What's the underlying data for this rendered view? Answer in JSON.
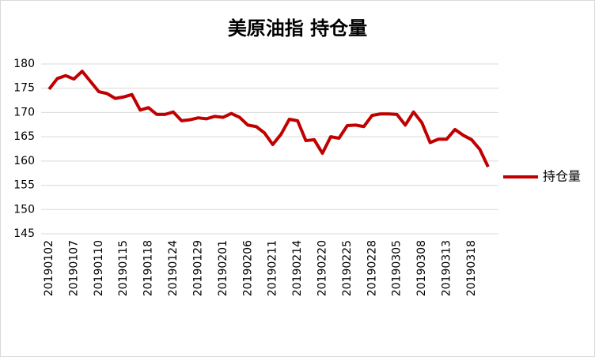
{
  "chart_data": {
    "type": "line",
    "title": "美原油指 持仓量",
    "categories": [
      "20190102",
      null,
      null,
      "20190107",
      null,
      null,
      "20190110",
      null,
      null,
      "20190115",
      null,
      null,
      "20190118",
      null,
      null,
      "20190124",
      null,
      null,
      "20190129",
      null,
      null,
      "20190201",
      null,
      null,
      "20190206",
      null,
      null,
      "20190211",
      null,
      null,
      "20190214",
      null,
      null,
      "20190220",
      null,
      null,
      "20190225",
      null,
      null,
      "20190228",
      null,
      null,
      "20190305",
      null,
      null,
      "20190308",
      null,
      null,
      "20190313",
      null,
      null,
      "20190318",
      null,
      null
    ],
    "series": [
      {
        "name": "持仓量",
        "color": "#c00000",
        "values": [
          174.8,
          177,
          177.6,
          176.9,
          178.5,
          176.4,
          174.3,
          173.9,
          172.9,
          173.2,
          173.7,
          170.5,
          171,
          169.6,
          169.6,
          170.1,
          168.3,
          168.5,
          168.9,
          168.7,
          169.2,
          169,
          169.8,
          169,
          167.4,
          167.1,
          165.8,
          163.4,
          165.5,
          168.6,
          168.3,
          164.2,
          164.4,
          161.6,
          165,
          164.7,
          167.3,
          167.4,
          167.1,
          169.4,
          169.7,
          169.7,
          169.6,
          167.4,
          170.1,
          167.9,
          163.8,
          164.5,
          164.5,
          166.5,
          165.3,
          164.4,
          162.4,
          158.8
        ]
      }
    ],
    "ylim": [
      145,
      180
    ],
    "yticks": [
      145,
      150,
      155,
      160,
      165,
      170,
      175,
      180
    ],
    "grid": true,
    "legend": "right"
  }
}
